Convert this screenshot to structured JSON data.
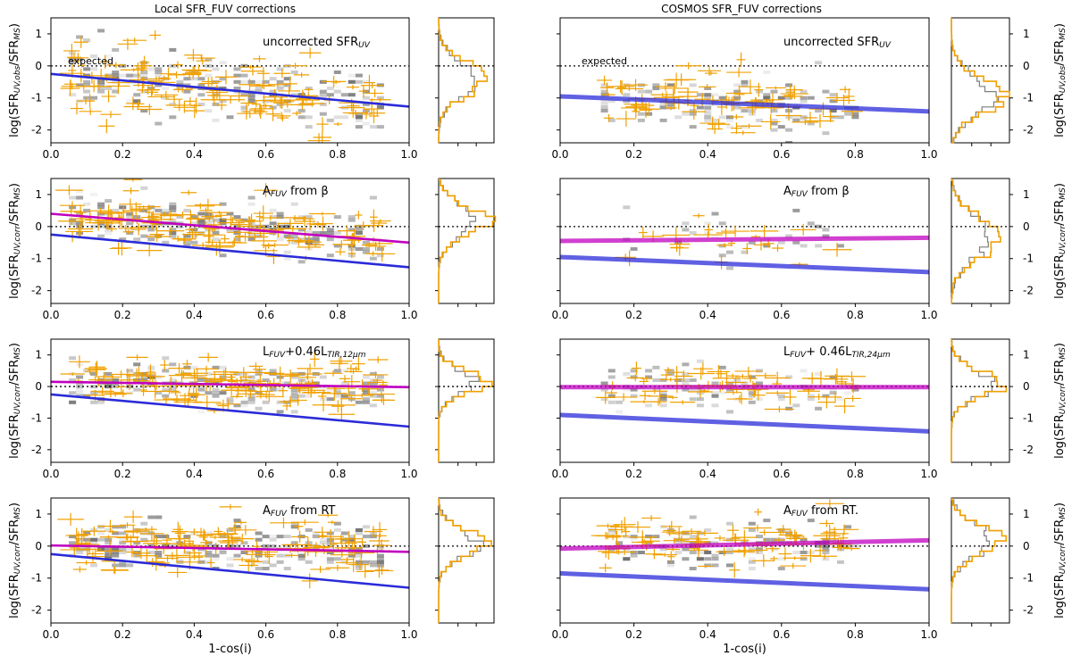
{
  "figure": {
    "left_column_title": "Local SFR_FUV corrections",
    "right_column_title": "COSMOS SFR_FUV corrections",
    "expected_label": "expected",
    "colors": {
      "axes": "#000000",
      "expected_line": "#000000",
      "uncorrected_fit": "#2b2bd9",
      "corrected_fit": "#c000c0",
      "data_points": "#f0a000",
      "density": "#555555",
      "hist_data": "#f0a000",
      "hist_model": "#7f7f7f"
    }
  },
  "chart_data": [
    {
      "id": "local-uncorrected",
      "type": "scatter",
      "title": "uncorrected SFR_UV",
      "xlabel": "",
      "ylabel": "log(SFR_UV,obs/SFR_MS)",
      "xlim": [
        0,
        1
      ],
      "ylim": [
        -2.4,
        1.5
      ],
      "xticks": [
        "0.0",
        "0.2",
        "0.4",
        "0.6",
        "0.8",
        "1.0"
      ],
      "yticks": [
        "1",
        "0",
        "-1",
        "-2"
      ],
      "expected_y": 0,
      "fit_lines": [
        {
          "name": "uncorrected",
          "x": [
            0,
            1
          ],
          "y": [
            -0.25,
            -1.27
          ]
        }
      ],
      "trend": {
        "y0": -0.25,
        "slope": -1.0,
        "scatter": 0.5,
        "xmin": 0.05,
        "xmax": 0.93,
        "n": 150
      },
      "histogram": {
        "center": -0.5,
        "width": 0.5
      }
    },
    {
      "id": "cosmos-uncorrected",
      "type": "scatter",
      "title": "uncorrected SFR_UV",
      "xlabel": "",
      "ylabel": "log(SFR_UV,obs/SFR_MS)",
      "xlim": [
        0,
        1
      ],
      "ylim": [
        -2.4,
        1.5
      ],
      "xticks": [
        "0.0",
        "0.2",
        "0.4",
        "0.6",
        "0.8",
        "1.0"
      ],
      "yticks": [
        "1",
        "0",
        "-1",
        "-2"
      ],
      "expected_y": 0,
      "fit_lines": [
        {
          "name": "uncorrected",
          "x": [
            0,
            1
          ],
          "y": [
            -0.95,
            -1.42
          ]
        }
      ],
      "trend": {
        "y0": -0.95,
        "slope": -0.45,
        "scatter": 0.45,
        "xmin": 0.1,
        "xmax": 0.8,
        "n": 90
      },
      "histogram": {
        "center": -1.0,
        "width": 0.55
      }
    },
    {
      "id": "local-beta",
      "type": "scatter",
      "title": "A_FUV from β",
      "xlabel": "",
      "ylabel": "log(SFR_UV,corr/SFR_MS)",
      "xlim": [
        0,
        1
      ],
      "ylim": [
        -2.4,
        1.5
      ],
      "xticks": [
        "0.0",
        "0.2",
        "0.4",
        "0.6",
        "0.8",
        "1.0"
      ],
      "yticks": [
        "1",
        "0",
        "-1",
        "-2"
      ],
      "expected_y": 0,
      "fit_lines": [
        {
          "name": "uncorrected",
          "x": [
            0,
            1
          ],
          "y": [
            -0.25,
            -1.27
          ]
        },
        {
          "name": "corrected",
          "x": [
            0,
            1
          ],
          "y": [
            0.4,
            -0.5
          ]
        }
      ],
      "trend": {
        "y0": 0.4,
        "slope": -0.9,
        "scatter": 0.4,
        "xmin": 0.05,
        "xmax": 0.93,
        "n": 150
      },
      "histogram": {
        "center": 0.1,
        "width": 0.45
      }
    },
    {
      "id": "cosmos-beta",
      "type": "scatter",
      "title": "A_FUV from β",
      "xlabel": "",
      "ylabel": "log(SFR_UV,corr/SFR_MS)",
      "xlim": [
        0,
        1
      ],
      "ylim": [
        -2.4,
        1.5
      ],
      "xticks": [
        "0.0",
        "0.2",
        "0.4",
        "0.6",
        "0.8",
        "1.0"
      ],
      "yticks": [
        "1",
        "0",
        "-1",
        "-2"
      ],
      "expected_y": 0,
      "fit_lines": [
        {
          "name": "uncorrected",
          "x": [
            0,
            1
          ],
          "y": [
            -0.95,
            -1.42
          ]
        },
        {
          "name": "corrected",
          "x": [
            0,
            1
          ],
          "y": [
            -0.45,
            -0.35
          ]
        }
      ],
      "trend": {
        "y0": -0.4,
        "slope": 0.0,
        "scatter": 0.45,
        "xmin": 0.15,
        "xmax": 0.8,
        "n": 25
      },
      "histogram": {
        "center": -0.4,
        "width": 0.6
      }
    },
    {
      "id": "local-tir",
      "type": "scatter",
      "title": "L_FUV+0.46L_TIR,12μm",
      "xlabel": "",
      "ylabel": "log(SFR_UV,corr/SFR_MS)",
      "xlim": [
        0,
        1
      ],
      "ylim": [
        -2.4,
        1.5
      ],
      "xticks": [
        "0.0",
        "0.2",
        "0.4",
        "0.6",
        "0.8",
        "1.0"
      ],
      "yticks": [
        "1",
        "0",
        "-1",
        "-2"
      ],
      "expected_y": 0,
      "fit_lines": [
        {
          "name": "uncorrected",
          "x": [
            0,
            1
          ],
          "y": [
            -0.25,
            -1.27
          ]
        },
        {
          "name": "corrected",
          "x": [
            0,
            1
          ],
          "y": [
            0.15,
            -0.02
          ]
        }
      ],
      "trend": {
        "y0": 0.12,
        "slope": -0.12,
        "scatter": 0.35,
        "xmin": 0.05,
        "xmax": 0.93,
        "n": 150
      },
      "histogram": {
        "center": 0.05,
        "width": 0.35
      }
    },
    {
      "id": "cosmos-tir",
      "type": "scatter",
      "title": "L_FUV+ 0.46L_TIR,24μm",
      "xlabel": "",
      "ylabel": "log(SFR_UV,corr/SFR_MS)",
      "xlim": [
        0,
        1
      ],
      "ylim": [
        -2.4,
        1.5
      ],
      "xticks": [
        "0.0",
        "0.2",
        "0.4",
        "0.6",
        "0.8",
        "1.0"
      ],
      "yticks": [
        "1",
        "0",
        "-1",
        "-2"
      ],
      "expected_y": 0,
      "fit_lines": [
        {
          "name": "uncorrected",
          "x": [
            0,
            1
          ],
          "y": [
            -0.9,
            -1.42
          ]
        },
        {
          "name": "corrected",
          "x": [
            0,
            1
          ],
          "y": [
            -0.02,
            -0.02
          ]
        }
      ],
      "trend": {
        "y0": 0.0,
        "slope": 0.0,
        "scatter": 0.35,
        "xmin": 0.12,
        "xmax": 0.8,
        "n": 70
      },
      "histogram": {
        "center": 0.0,
        "width": 0.4
      }
    },
    {
      "id": "local-rt",
      "type": "scatter",
      "title": "A_FUV from RT",
      "xlabel": "1-cos(i)",
      "ylabel": "log(SFR_UV,corr/SFR_MS)",
      "xlim": [
        0,
        1
      ],
      "ylim": [
        -2.4,
        1.5
      ],
      "xticks": [
        "0.0",
        "0.2",
        "0.4",
        "0.6",
        "0.8",
        "1.0"
      ],
      "yticks": [
        "1",
        "0",
        "-1",
        "-2"
      ],
      "expected_y": 0,
      "fit_lines": [
        {
          "name": "uncorrected",
          "x": [
            0,
            1
          ],
          "y": [
            -0.25,
            -1.3
          ]
        },
        {
          "name": "corrected",
          "x": [
            0,
            1
          ],
          "y": [
            0.02,
            -0.18
          ]
        }
      ],
      "trend": {
        "y0": 0.05,
        "slope": -0.1,
        "scatter": 0.4,
        "xmin": 0.05,
        "xmax": 0.93,
        "n": 150
      },
      "histogram": {
        "center": 0.0,
        "width": 0.4
      }
    },
    {
      "id": "cosmos-rt",
      "type": "scatter",
      "title": "A_FUV from RT.",
      "xlabel": "1-cos(i)",
      "ylabel": "log(SFR_UV,corr/SFR_MS)",
      "xlim": [
        0,
        1
      ],
      "ylim": [
        -2.4,
        1.5
      ],
      "xticks": [
        "0.0",
        "0.2",
        "0.4",
        "0.6",
        "0.8",
        "1.0"
      ],
      "yticks": [
        "1",
        "0",
        "-1",
        "-2"
      ],
      "expected_y": 0,
      "fit_lines": [
        {
          "name": "uncorrected",
          "x": [
            0,
            1
          ],
          "y": [
            -0.85,
            -1.35
          ]
        },
        {
          "name": "corrected",
          "x": [
            0,
            1
          ],
          "y": [
            -0.08,
            0.18
          ]
        }
      ],
      "trend": {
        "y0": 0.0,
        "slope": 0.15,
        "scatter": 0.4,
        "xmin": 0.12,
        "xmax": 0.8,
        "n": 90
      },
      "histogram": {
        "center": 0.1,
        "width": 0.45
      }
    }
  ]
}
